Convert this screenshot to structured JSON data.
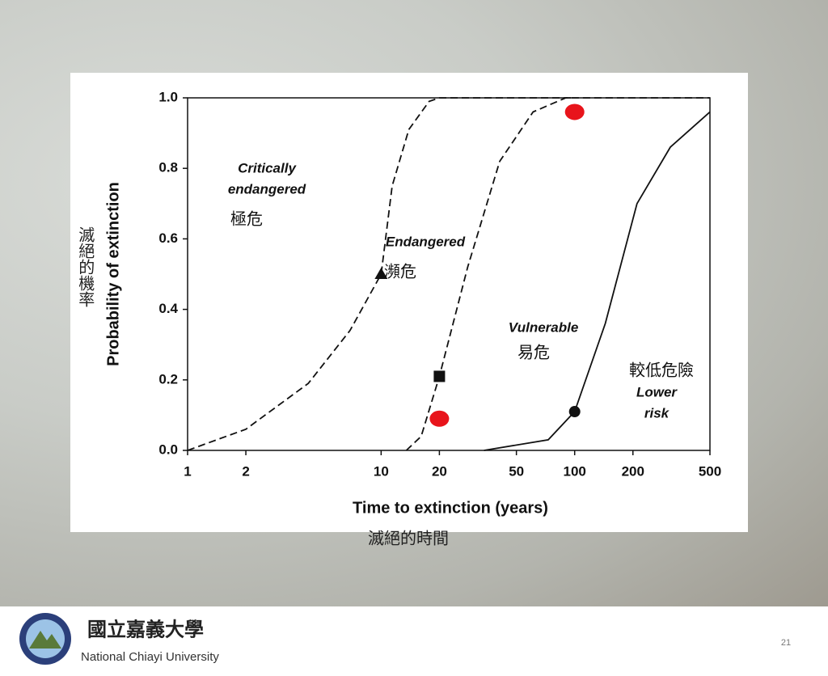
{
  "chart_data": {
    "type": "line",
    "xlabel": "Time to extinction (years)",
    "xlabel_zh": "滅絕的時間",
    "ylabel": "Probability of extinction",
    "ylabel_zh": "滅絕的機率",
    "xscale": "log",
    "xlim": [
      1,
      500
    ],
    "xticks": [
      1,
      2,
      10,
      20,
      50,
      100,
      200,
      500
    ],
    "ylim": [
      0,
      1
    ],
    "yticks": [
      {
        "value": 0,
        "label": "0.0"
      },
      {
        "value": 0.2,
        "label": "0.2"
      },
      {
        "value": 0.4,
        "label": "0.4"
      },
      {
        "value": 0.6,
        "label": "0.6"
      },
      {
        "value": 0.8,
        "label": "0.8"
      },
      {
        "value": 1,
        "label": "1.0"
      }
    ],
    "series": [
      {
        "color": "#111111",
        "dash": "dashed",
        "x": [
          1,
          2,
          4.2,
          6.9,
          10,
          11.4,
          13.9,
          17.7,
          20,
          100
        ],
        "values": [
          0,
          0.06,
          0.19,
          0.34,
          0.5,
          0.75,
          0.91,
          0.99,
          1,
          1
        ]
      },
      {
        "color": "#111111",
        "dash": "dashed",
        "x": [
          13.5,
          16.1,
          20,
          28,
          41,
          61,
          90,
          500
        ],
        "values": [
          0,
          0.04,
          0.21,
          0.52,
          0.82,
          0.96,
          1,
          1
        ]
      },
      {
        "color": "#111111",
        "dash": "solid",
        "x": [
          34,
          73,
          100,
          144,
          210,
          312,
          500
        ],
        "values": [
          0,
          0.03,
          0.11,
          0.36,
          0.7,
          0.86,
          0.96
        ]
      }
    ],
    "markers": [
      {
        "shape": "triangle",
        "color": "#111111",
        "x": 10,
        "y": 0.5
      },
      {
        "shape": "square",
        "color": "#111111",
        "x": 20,
        "y": 0.21
      },
      {
        "shape": "circle",
        "color": "#111111",
        "x": 100,
        "y": 0.11
      },
      {
        "shape": "circle",
        "color": "#e8141b",
        "x": 20,
        "y": 0.09
      },
      {
        "shape": "circle",
        "color": "#e8141b",
        "x": 100,
        "y": 0.96
      }
    ],
    "annotations": [
      {
        "text": "Critically"
      },
      {
        "text": "endangered"
      },
      {
        "text": "極危"
      },
      {
        "text": "Endangered"
      },
      {
        "text": "瀕危"
      },
      {
        "text": "Vulnerable"
      },
      {
        "text": "易危"
      },
      {
        "text": "較低危險"
      },
      {
        "text": "Lower"
      },
      {
        "text": "risk"
      }
    ]
  },
  "footer": {
    "university_zh": "國立嘉義大學",
    "university_en": "National Chiayi University",
    "page": "21"
  }
}
